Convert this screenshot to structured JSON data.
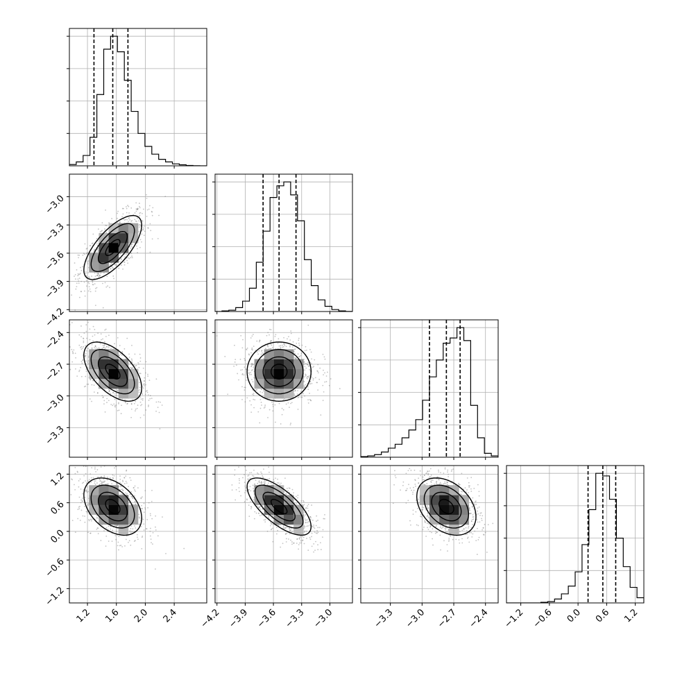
{
  "chart_data": {
    "type": "corner",
    "n_params": 4,
    "parameters": [
      {
        "range": [
          0.95,
          2.85
        ],
        "median": 1.55,
        "quantiles": [
          1.29,
          1.55,
          1.76
        ],
        "sigma": 0.2,
        "ticks": [
          1.2,
          1.6,
          2.0,
          2.4
        ],
        "tick_labels": [
          "1.2",
          "1.6",
          "2.0",
          "2.4"
        ],
        "hist_counts": [
          1,
          3,
          8,
          22,
          55,
          90,
          100,
          88,
          66,
          42,
          25,
          15,
          9,
          5,
          3,
          1.5,
          0.8,
          0.3,
          0.1,
          0
        ]
      },
      {
        "range": [
          -4.22,
          -2.76
        ],
        "median": -3.54,
        "quantiles": [
          -3.71,
          -3.54,
          -3.36
        ],
        "sigma": 0.17,
        "ticks": [
          -4.2,
          -3.9,
          -3.6,
          -3.3,
          -3.0
        ],
        "tick_labels": [
          "−4.2",
          "−3.9",
          "−3.6",
          "−3.3",
          "−3.0"
        ],
        "hist_counts": [
          0,
          0.5,
          1,
          3,
          8,
          18,
          38,
          62,
          88,
          97,
          100,
          90,
          70,
          40,
          20,
          9,
          4,
          1.5,
          0.5,
          0.1
        ]
      },
      {
        "range": [
          -3.58,
          -2.28
        ],
        "median": -2.77,
        "quantiles": [
          -2.93,
          -2.77,
          -2.64
        ],
        "sigma": 0.14,
        "ticks": [
          -3.3,
          -3.0,
          -2.7,
          -2.4
        ],
        "tick_labels": [
          "−3.3",
          "−3.0",
          "−2.7",
          "−2.4"
        ],
        "hist_counts": [
          0.5,
          1,
          2,
          4,
          7,
          10,
          15,
          21,
          29,
          44,
          62,
          75,
          88,
          92,
          100,
          90,
          40,
          15,
          3,
          1
        ]
      },
      {
        "range": [
          -1.5,
          1.38
        ],
        "median": 0.52,
        "quantiles": [
          0.21,
          0.52,
          0.79
        ],
        "sigma": 0.3,
        "ticks": [
          -1.2,
          -0.6,
          0.0,
          0.6,
          1.2
        ],
        "tick_labels": [
          "−1.2",
          "−0.6",
          "0.0",
          "0.6",
          "1.2"
        ],
        "hist_counts": [
          0,
          0,
          0,
          0,
          0,
          0.5,
          1,
          3,
          7,
          13,
          24,
          45,
          72,
          100,
          98,
          80,
          50,
          28,
          12,
          4
        ]
      }
    ],
    "correlations": [
      [
        0,
        1,
        0.7
      ],
      [
        0,
        2,
        -0.55
      ],
      [
        0,
        3,
        -0.4
      ],
      [
        1,
        2,
        0.0
      ],
      [
        1,
        3,
        -0.7
      ],
      [
        2,
        3,
        -0.35
      ]
    ],
    "grid": true
  }
}
